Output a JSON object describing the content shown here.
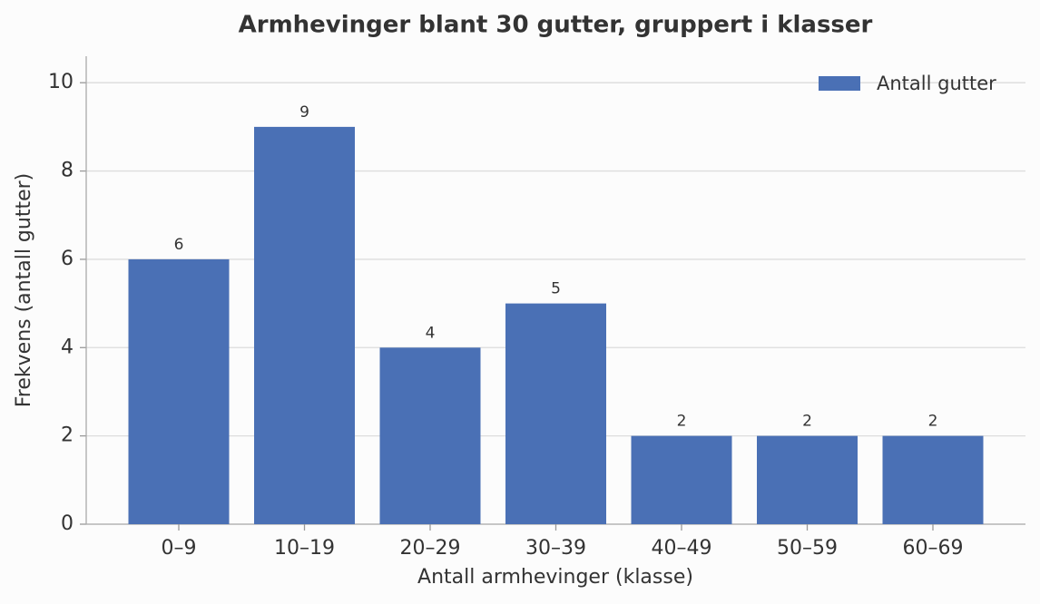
{
  "chart_data": {
    "type": "bar",
    "title": "Armhevinger blant 30 gutter, gruppert i klasser",
    "x_label": "Antall armhevinger (klasse)",
    "y_label": "Frekvens (antall gutter)",
    "categories": [
      "0–9",
      "10–19",
      "20–29",
      "30–39",
      "40–49",
      "50–59",
      "60–69"
    ],
    "series": [
      {
        "name": "Antall gutter",
        "color": "#4a70b5",
        "values": [
          6,
          9,
          4,
          5,
          2,
          2,
          2
        ]
      }
    ],
    "ylim": [
      0,
      10.6
    ],
    "yticks": [
      0,
      2,
      4,
      6,
      8,
      10
    ],
    "grid": true,
    "legend": "upper right",
    "data_labels": true
  }
}
